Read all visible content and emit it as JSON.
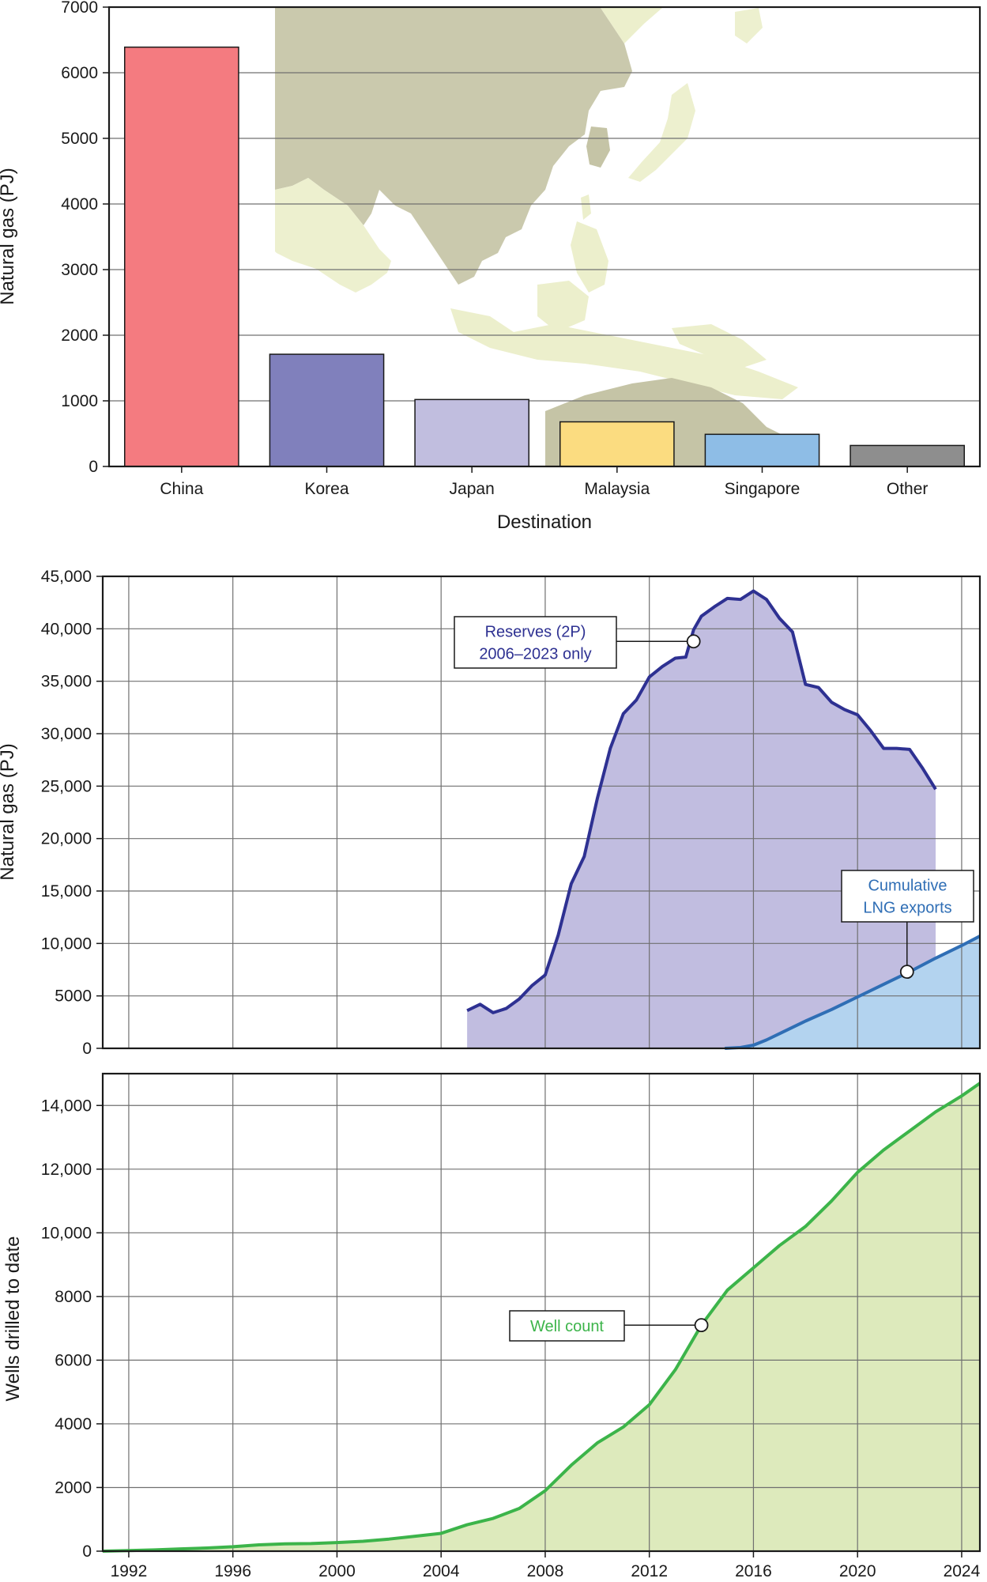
{
  "chart_data": [
    {
      "type": "bar",
      "xlabel": "Destination",
      "ylabel": "Natural gas (PJ)",
      "ylim": [
        0,
        7000
      ],
      "yticks": [
        0,
        1000,
        2000,
        3000,
        4000,
        5000,
        6000,
        7000
      ],
      "ytick_labels": [
        "0",
        "1000",
        "2000",
        "3000",
        "4000",
        "5000",
        "6000",
        "7000"
      ],
      "grid": "horizontal",
      "background": "faded map of East and Southeast Asia and Australia",
      "categories": [
        "China",
        "Korea",
        "Japan",
        "Malaysia",
        "Singapore",
        "Other"
      ],
      "values": [
        6390,
        1710,
        1020,
        680,
        490,
        320
      ],
      "colors": [
        "#f47b80",
        "#8080bc",
        "#c1bedf",
        "#fbdc80",
        "#8ebde6",
        "#8e8e8e"
      ]
    },
    {
      "type": "area",
      "ylabel": "Natural gas (PJ)",
      "xlim": [
        1991,
        2024.7
      ],
      "ylim": [
        0,
        45000
      ],
      "yticks": [
        0,
        5000,
        10000,
        15000,
        20000,
        25000,
        30000,
        35000,
        40000,
        45000
      ],
      "ytick_labels": [
        "0",
        "5000",
        "10,000",
        "15,000",
        "20,000",
        "25,000",
        "30,000",
        "35,000",
        "40,000",
        "45,000"
      ],
      "xgrid": [
        1992,
        1996,
        2000,
        2004,
        2008,
        2012,
        2016,
        2020,
        2024
      ],
      "grid": true,
      "series": [
        {
          "name": "Reserves (2P) 2006–2023 only",
          "label_lines": [
            "Reserves (2P)",
            "2006–2023 only"
          ],
          "color": "#2e3192",
          "fill": "#c1bde0",
          "x": [
            2005.0,
            2005.5,
            2006.0,
            2006.5,
            2007.0,
            2007.5,
            2008.0,
            2008.5,
            2009.0,
            2009.5,
            2010.0,
            2010.5,
            2011.0,
            2011.5,
            2012.0,
            2012.5,
            2013.0,
            2013.4,
            2013.7,
            2014.0,
            2014.5,
            2015.0,
            2015.5,
            2016.0,
            2016.5,
            2017.0,
            2017.5,
            2018.0,
            2018.5,
            2019.0,
            2019.5,
            2020.0,
            2020.5,
            2021.0,
            2021.5,
            2022.0,
            2022.5,
            2023.0
          ],
          "y": [
            3600,
            4200,
            3400,
            3800,
            4700,
            6000,
            7000,
            10800,
            15700,
            18300,
            23800,
            28600,
            31900,
            33200,
            35400,
            36400,
            37200,
            37300,
            39900,
            41200,
            42100,
            42900,
            42800,
            43600,
            42800,
            41000,
            39700,
            34700,
            34400,
            33000,
            32300,
            31800,
            30300,
            28600,
            28600,
            28500,
            26700,
            24700
          ],
          "annotation": {
            "x": 2013.7,
            "y": 38800
          }
        },
        {
          "name": "Cumulative LNG exports",
          "label_lines": [
            "Cumulative",
            "LNG exports"
          ],
          "color": "#2f6eb5",
          "fill": "#b3d3ef",
          "x": [
            2014.9,
            2015.5,
            2016.0,
            2016.5,
            2017.0,
            2018.0,
            2019.0,
            2020.0,
            2021.0,
            2022.0,
            2023.0,
            2024.0,
            2024.7
          ],
          "y": [
            0,
            80,
            300,
            800,
            1400,
            2600,
            3700,
            4900,
            6100,
            7300,
            8600,
            9800,
            10700
          ],
          "annotation": {
            "x": 2021.9,
            "y": 7300
          }
        }
      ]
    },
    {
      "type": "area",
      "ylabel": "Wells drilled to date",
      "xlim": [
        1991,
        2024.7
      ],
      "ylim": [
        0,
        15000
      ],
      "yticks": [
        0,
        2000,
        4000,
        6000,
        8000,
        10000,
        12000,
        14000
      ],
      "ytick_labels": [
        "0",
        "2000",
        "4000",
        "6000",
        "8000",
        "10,000",
        "12,000",
        "14,000"
      ],
      "xticks": [
        1992,
        1996,
        2000,
        2004,
        2008,
        2012,
        2016,
        2020,
        2024
      ],
      "xtick_labels": [
        "1992",
        "1996",
        "2000",
        "2004",
        "2008",
        "2012",
        "2016",
        "2020",
        "2024"
      ],
      "grid": true,
      "series": [
        {
          "name": "Well count",
          "label_lines": [
            "Well count"
          ],
          "color": "#3cb44a",
          "fill": "#ddeabc",
          "x": [
            1991,
            1992,
            1993,
            1994,
            1995,
            1996,
            1997,
            1998,
            1999,
            2000,
            2001,
            2002,
            2003,
            2004,
            2005,
            2006,
            2007,
            2008,
            2009,
            2010,
            2011,
            2012,
            2013,
            2014,
            2015,
            2016,
            2017,
            2018,
            2019,
            2020,
            2021,
            2022,
            2023,
            2024,
            2024.7
          ],
          "y": [
            0,
            20,
            40,
            70,
            100,
            140,
            200,
            230,
            240,
            270,
            310,
            380,
            470,
            560,
            830,
            1030,
            1340,
            1900,
            2700,
            3400,
            3900,
            4600,
            5700,
            7100,
            8200,
            8900,
            9600,
            10200,
            11000,
            11900,
            12600,
            13200,
            13800,
            14300,
            14700
          ],
          "annotation": {
            "x": 2014.0,
            "y": 7100
          }
        }
      ]
    }
  ]
}
